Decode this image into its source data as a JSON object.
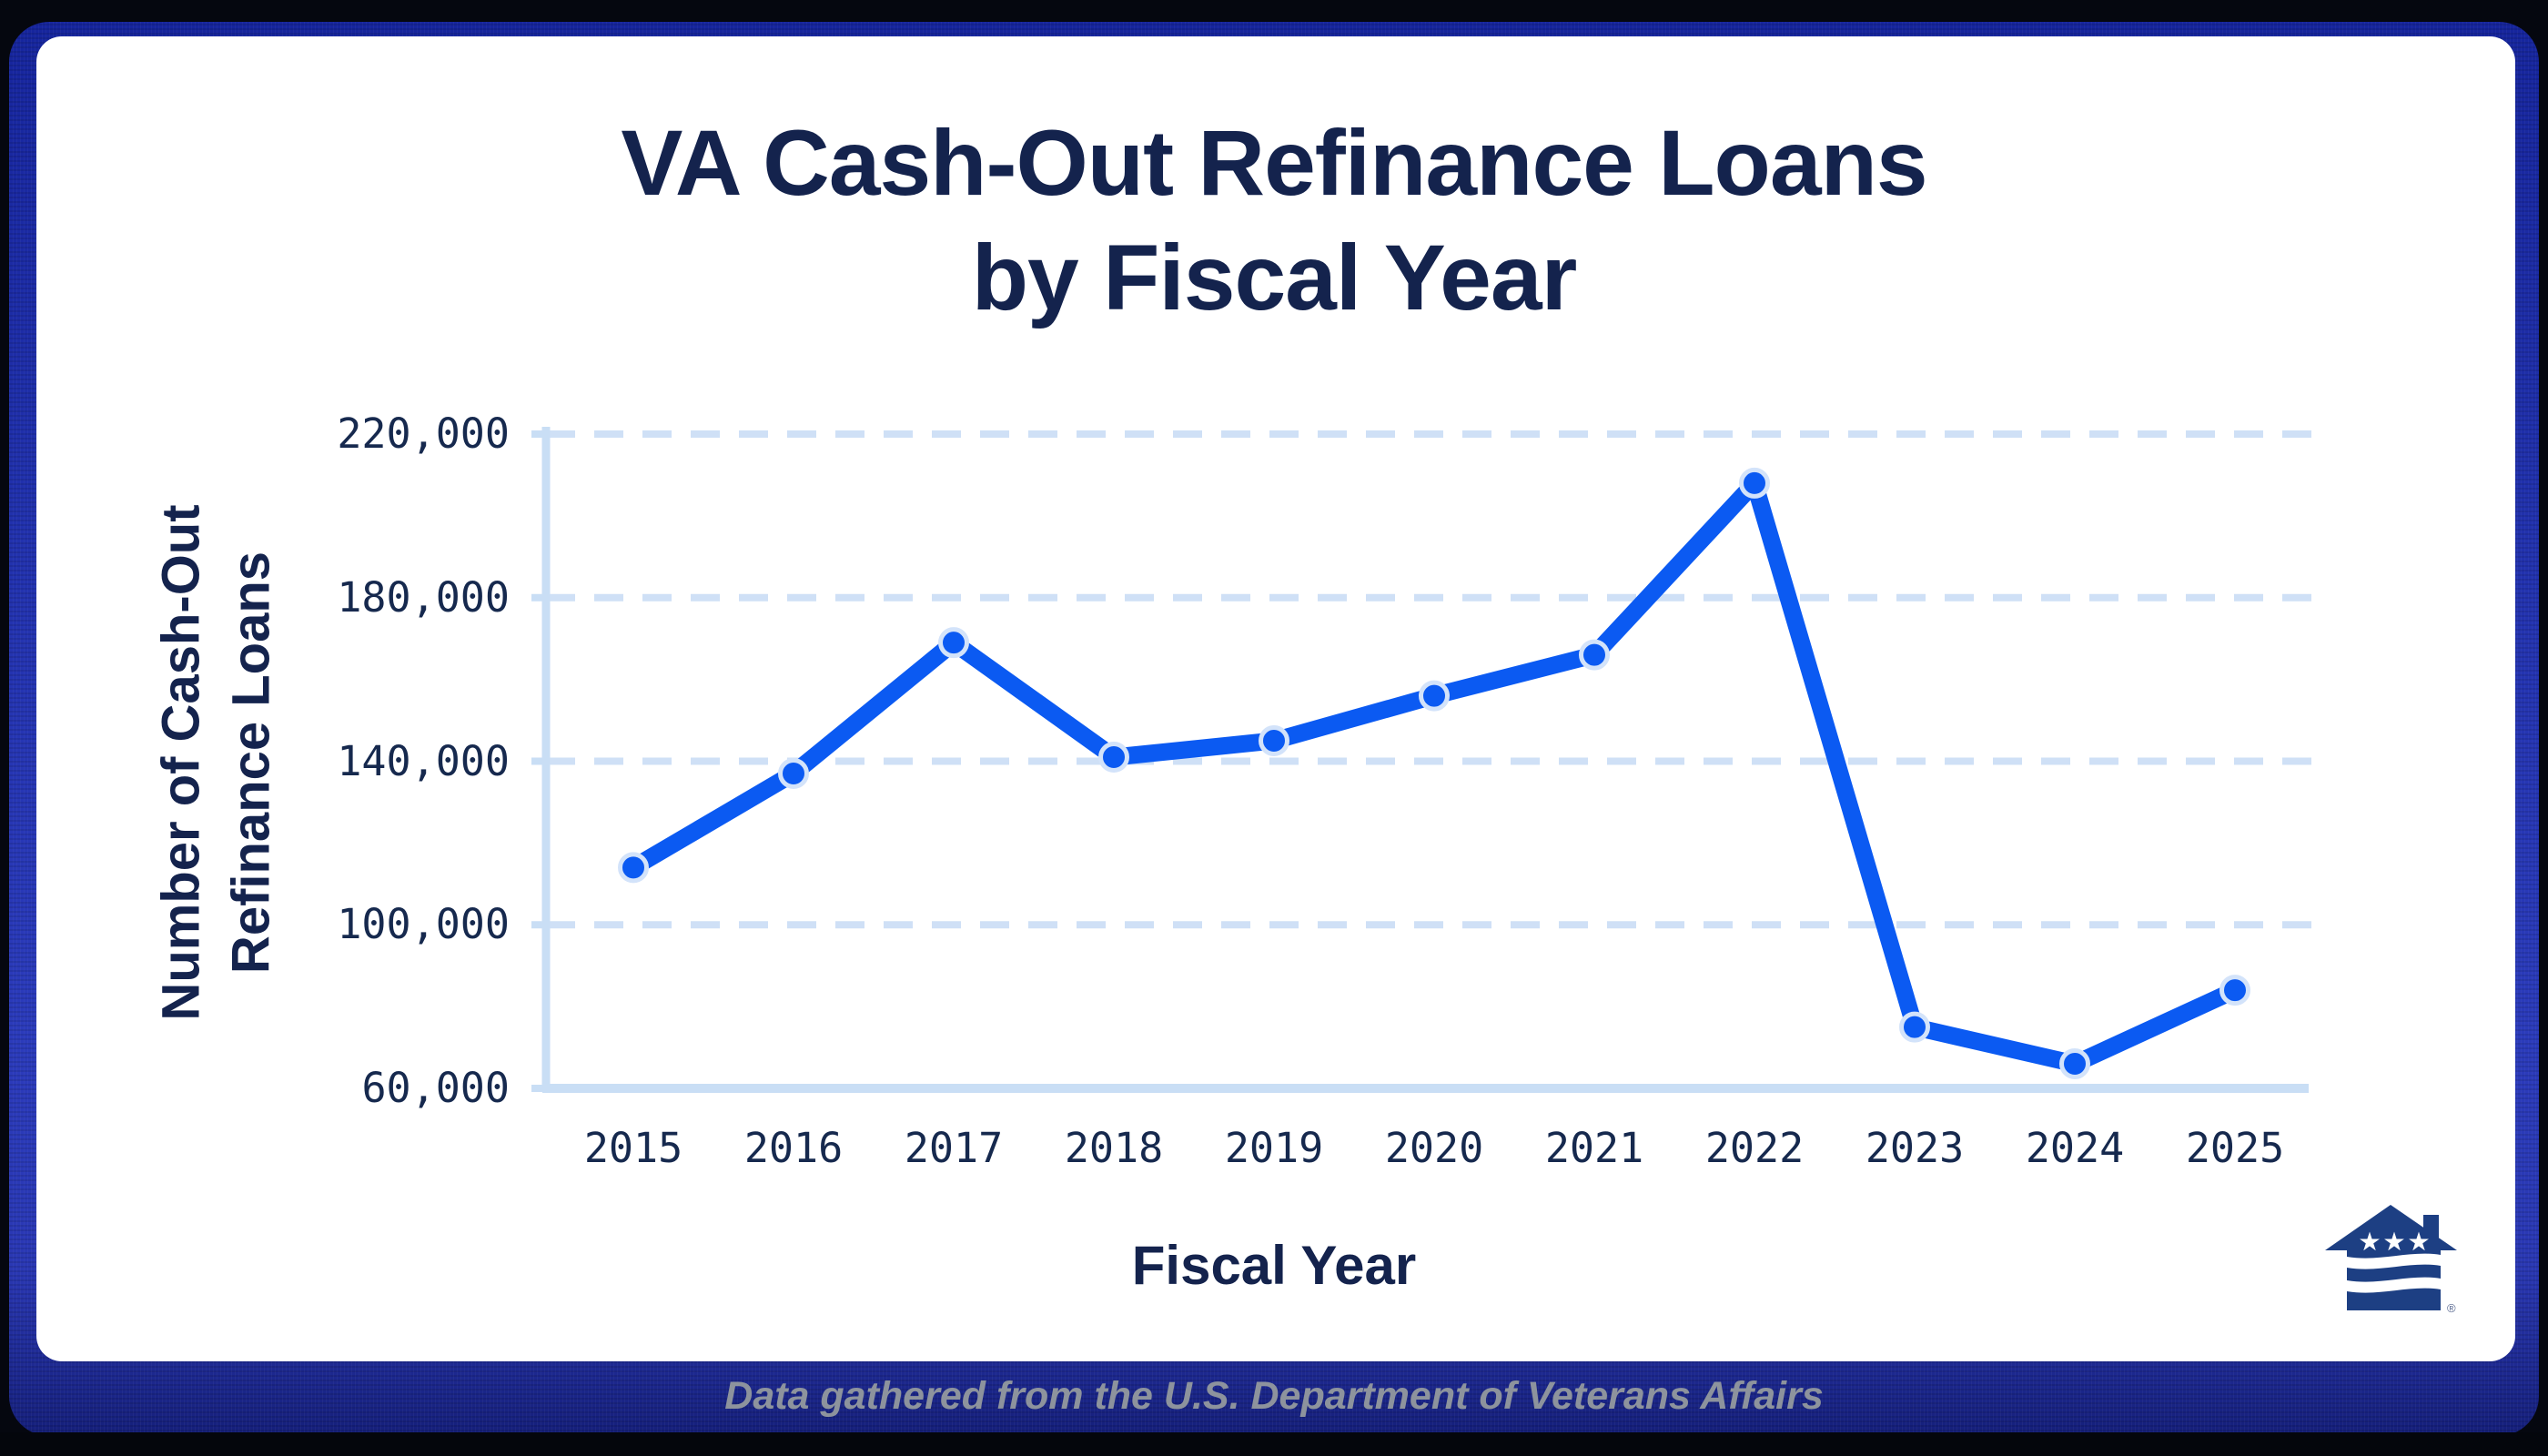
{
  "title": {
    "line1": "VA Cash-Out Refinance Loans",
    "line2": "by Fiscal Year"
  },
  "y_axis_title": {
    "line1": "Number of Cash-Out",
    "line2": "Refinance Loans"
  },
  "x_axis_title": "Fiscal Year",
  "caption": {
    "text": "Data gathered from the U.S. Department of Veterans Affairs"
  },
  "logo": {
    "name": "veterans-united-house-flag-logo",
    "registered_mark": "®"
  },
  "colors": {
    "line": "#0b5af2",
    "marker_fill": "#0b5af2",
    "marker_ring": "#d3e3fa",
    "grid": "#cfe0f6",
    "axis": "#c9def5",
    "navy_text": "#14234d",
    "border_blue": "#2434b2",
    "caption_gray": "#8d939d",
    "logo_navy": "#1d3f83"
  },
  "chart_data": {
    "type": "line",
    "title": "VA Cash-Out Refinance Loans by Fiscal Year",
    "xlabel": "Fiscal Year",
    "ylabel": "Number of Cash-Out Refinance Loans",
    "categories": [
      "2015",
      "2016",
      "2017",
      "2018",
      "2019",
      "2020",
      "2021",
      "2022",
      "2023",
      "2024",
      "2025"
    ],
    "values": [
      114000,
      137000,
      169000,
      141000,
      145000,
      156000,
      166000,
      208000,
      75000,
      66000,
      84000
    ],
    "ylim": [
      60000,
      220000
    ],
    "yticks": [
      220000,
      180000,
      140000,
      100000,
      60000
    ],
    "ytick_labels": [
      "220,000",
      "180,000",
      "140,000",
      "100,000",
      "60,000"
    ],
    "grid": "horizontal-dashed",
    "legend": "none",
    "marker": "circle"
  }
}
